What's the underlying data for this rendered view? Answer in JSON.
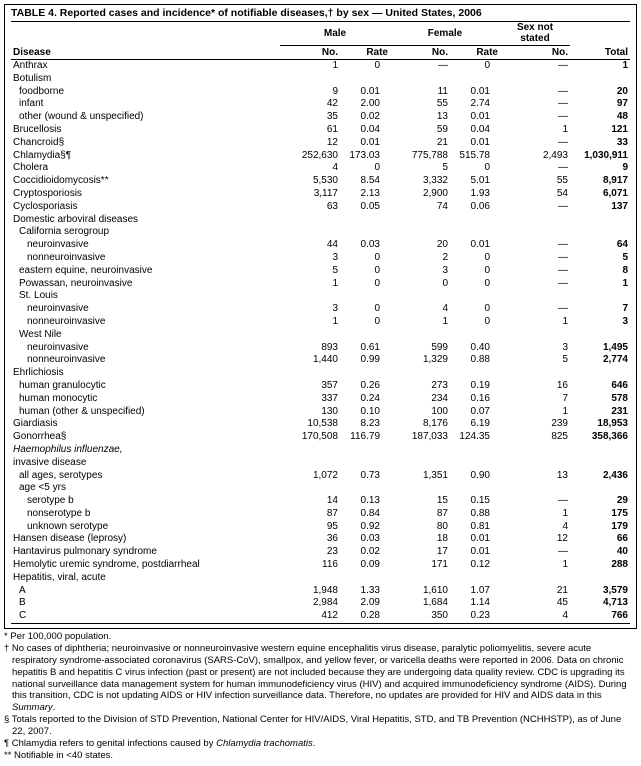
{
  "title": "TABLE 4. Reported cases and incidence* of notifiable diseases,† by sex — United States, 2006",
  "header": {
    "disease": "Disease",
    "male": "Male",
    "female": "Female",
    "sns": "Sex not stated",
    "no": "No.",
    "rate": "Rate",
    "total": "Total"
  },
  "dash": "—",
  "rows": [
    {
      "d": "Anthrax",
      "i": 0,
      "mNo": "1",
      "mR": "0",
      "fNo": "—",
      "fR": "0",
      "sns": "—",
      "t": "1"
    },
    {
      "d": "Botulism",
      "i": 0
    },
    {
      "d": "foodborne",
      "i": 1,
      "mNo": "9",
      "mR": "0.01",
      "fNo": "11",
      "fR": "0.01",
      "sns": "—",
      "t": "20"
    },
    {
      "d": "infant",
      "i": 1,
      "mNo": "42",
      "mR": "2.00",
      "fNo": "55",
      "fR": "2.74",
      "sns": "—",
      "t": "97"
    },
    {
      "d": "other (wound & unspecified)",
      "i": 1,
      "mNo": "35",
      "mR": "0.02",
      "fNo": "13",
      "fR": "0.01",
      "sns": "—",
      "t": "48"
    },
    {
      "d": "Brucellosis",
      "i": 0,
      "mNo": "61",
      "mR": "0.04",
      "fNo": "59",
      "fR": "0.04",
      "sns": "1",
      "t": "121"
    },
    {
      "d": "Chancroid§",
      "i": 0,
      "mNo": "12",
      "mR": "0.01",
      "fNo": "21",
      "fR": "0.01",
      "sns": "—",
      "t": "33"
    },
    {
      "d": "Chlamydia§¶",
      "i": 0,
      "mNo": "252,630",
      "mR": "173.03",
      "fNo": "775,788",
      "fR": "515.78",
      "sns": "2,493",
      "t": "1,030,911"
    },
    {
      "d": "Cholera",
      "i": 0,
      "mNo": "4",
      "mR": "0",
      "fNo": "5",
      "fR": "0",
      "sns": "—",
      "t": "9"
    },
    {
      "d": "Coccidioidomycosis**",
      "i": 0,
      "mNo": "5,530",
      "mR": "8.54",
      "fNo": "3,332",
      "fR": "5.01",
      "sns": "55",
      "t": "8,917"
    },
    {
      "d": "Cryptosporiosis",
      "i": 0,
      "mNo": "3,117",
      "mR": "2.13",
      "fNo": "2,900",
      "fR": "1.93",
      "sns": "54",
      "t": "6,071"
    },
    {
      "d": "Cyclosporiasis",
      "i": 0,
      "mNo": "63",
      "mR": "0.05",
      "fNo": "74",
      "fR": "0.06",
      "sns": "—",
      "t": "137"
    },
    {
      "d": "Domestic arboviral diseases",
      "i": 0
    },
    {
      "d": "California serogroup",
      "i": 1
    },
    {
      "d": "neuroinvasive",
      "i": 2,
      "mNo": "44",
      "mR": "0.03",
      "fNo": "20",
      "fR": "0.01",
      "sns": "—",
      "t": "64"
    },
    {
      "d": "nonneuroinvasive",
      "i": 2,
      "mNo": "3",
      "mR": "0",
      "fNo": "2",
      "fR": "0",
      "sns": "—",
      "t": "5"
    },
    {
      "d": "eastern equine, neuroinvasive",
      "i": 1,
      "mNo": "5",
      "mR": "0",
      "fNo": "3",
      "fR": "0",
      "sns": "—",
      "t": "8"
    },
    {
      "d": "Powassan, neuroinvasive",
      "i": 1,
      "mNo": "1",
      "mR": "0",
      "fNo": "0",
      "fR": "0",
      "sns": "—",
      "t": "1"
    },
    {
      "d": "St. Louis",
      "i": 1
    },
    {
      "d": "neuroinvasive",
      "i": 2,
      "mNo": "3",
      "mR": "0",
      "fNo": "4",
      "fR": "0",
      "sns": "—",
      "t": "7"
    },
    {
      "d": "nonneuroinvasive",
      "i": 2,
      "mNo": "1",
      "mR": "0",
      "fNo": "1",
      "fR": "0",
      "sns": "1",
      "t": "3"
    },
    {
      "d": "West Nile",
      "i": 1
    },
    {
      "d": "neuroinvasive",
      "i": 2,
      "mNo": "893",
      "mR": "0.61",
      "fNo": "599",
      "fR": "0.40",
      "sns": "3",
      "t": "1,495"
    },
    {
      "d": "nonneuroinvasive",
      "i": 2,
      "mNo": "1,440",
      "mR": "0.99",
      "fNo": "1,329",
      "fR": "0.88",
      "sns": "5",
      "t": "2,774"
    },
    {
      "d": "Ehrlichiosis",
      "i": 0
    },
    {
      "d": "human granulocytic",
      "i": 1,
      "mNo": "357",
      "mR": "0.26",
      "fNo": "273",
      "fR": "0.19",
      "sns": "16",
      "t": "646"
    },
    {
      "d": "human monocytic",
      "i": 1,
      "mNo": "337",
      "mR": "0.24",
      "fNo": "234",
      "fR": "0.16",
      "sns": "7",
      "t": "578"
    },
    {
      "d": "human (other & unspecified)",
      "i": 1,
      "mNo": "130",
      "mR": "0.10",
      "fNo": "100",
      "fR": "0.07",
      "sns": "1",
      "t": "231"
    },
    {
      "d": "Giardiasis",
      "i": 0,
      "mNo": "10,538",
      "mR": "8.23",
      "fNo": "8,176",
      "fR": "6.19",
      "sns": "239",
      "t": "18,953"
    },
    {
      "d": "Gonorrhea§",
      "i": 0,
      "mNo": "170,508",
      "mR": "116.79",
      "fNo": "187,033",
      "fR": "124.35",
      "sns": "825",
      "t": "358,366"
    },
    {
      "d": "Haemophilus influenzae,",
      "i": 0,
      "ital": true
    },
    {
      "d": "invasive disease",
      "i": 0
    },
    {
      "d": "all ages, serotypes",
      "i": 1,
      "mNo": "1,072",
      "mR": "0.73",
      "fNo": "1,351",
      "fR": "0.90",
      "sns": "13",
      "t": "2,436"
    },
    {
      "d": "age <5 yrs",
      "i": 1
    },
    {
      "d": "serotype b",
      "i": 2,
      "mNo": "14",
      "mR": "0.13",
      "fNo": "15",
      "fR": "0.15",
      "sns": "—",
      "t": "29"
    },
    {
      "d": "nonserotype b",
      "i": 2,
      "mNo": "87",
      "mR": "0.84",
      "fNo": "87",
      "fR": "0.88",
      "sns": "1",
      "t": "175"
    },
    {
      "d": "unknown serotype",
      "i": 2,
      "mNo": "95",
      "mR": "0.92",
      "fNo": "80",
      "fR": "0.81",
      "sns": "4",
      "t": "179"
    },
    {
      "d": "Hansen disease (leprosy)",
      "i": 0,
      "mNo": "36",
      "mR": "0.03",
      "fNo": "18",
      "fR": "0.01",
      "sns": "12",
      "t": "66"
    },
    {
      "d": "Hantavirus pulmonary syndrome",
      "i": 0,
      "mNo": "23",
      "mR": "0.02",
      "fNo": "17",
      "fR": "0.01",
      "sns": "—",
      "t": "40"
    },
    {
      "d": "Hemolytic uremic syndrome, postdiarrheal",
      "i": 0,
      "mNo": "116",
      "mR": "0.09",
      "fNo": "171",
      "fR": "0.12",
      "sns": "1",
      "t": "288"
    },
    {
      "d": "Hepatitis, viral, acute",
      "i": 0
    },
    {
      "d": "A",
      "i": 1,
      "mNo": "1,948",
      "mR": "1.33",
      "fNo": "1,610",
      "fR": "1.07",
      "sns": "21",
      "t": "3,579"
    },
    {
      "d": "B",
      "i": 1,
      "mNo": "2,984",
      "mR": "2.09",
      "fNo": "1,684",
      "fR": "1.14",
      "sns": "45",
      "t": "4,713"
    },
    {
      "d": "C",
      "i": 1,
      "mNo": "412",
      "mR": "0.28",
      "fNo": "350",
      "fR": "0.23",
      "sns": "4",
      "t": "766"
    }
  ],
  "footnotes": [
    "* Per 100,000 population.",
    "† No cases of diphtheria; neuroinvasive or nonneuroinvasive western equine encephalitis virus disease, paralytic poliomyelitis, severe acute respiratory syndrome-associated coronavirus (SARS-CoV), smallpox, and yellow fever, or varicella deaths were reported in 2006. Data on chronic hepatitis B and hepatitis C virus infection (past or present) are not included because they are undergoing data quality review. CDC is upgrading its national surveillance data management system for human immunodeficiency virus (HIV) and acquired immunodeficiency syndrome (AIDS). During this transition, CDC is not updating AIDS or HIV infection surveillance data. Therefore, no updates are provided for HIV and AIDS data in this Summary.",
    "§ Totals reported to the Division of STD Prevention, National Center for HIV/AIDS, Viral Hepatitis, STD, and TB Prevention (NCHHSTP), as of June 22, 2007.",
    "¶ Chlamydia refers to genital infections caused by Chlamydia trachomatis.",
    "** Notifiable in <40 states."
  ]
}
